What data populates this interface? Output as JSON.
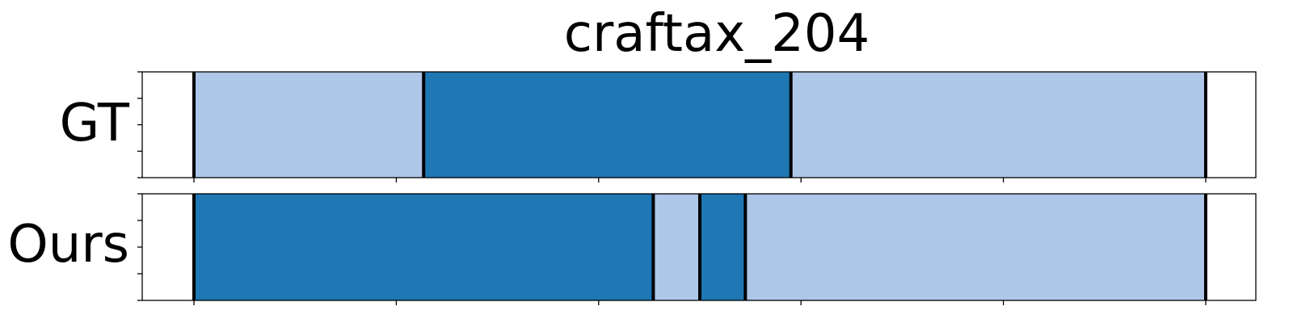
{
  "chart_data": {
    "type": "segmentation_bar",
    "title": "craftax_204",
    "xlim": [
      0,
      1000
    ],
    "xticks": [
      0,
      200,
      400,
      600,
      800,
      1000
    ],
    "yticks_per_row": 5,
    "colors": {
      "light": "#aec7e8",
      "dark": "#1f77b4",
      "boundary": "#000000"
    },
    "rows": [
      {
        "name": "GT",
        "segments": [
          {
            "start": 0,
            "end": 227,
            "class": "light"
          },
          {
            "start": 227,
            "end": 590,
            "class": "dark"
          },
          {
            "start": 590,
            "end": 1000,
            "class": "light"
          }
        ],
        "boundaries": [
          0,
          227,
          590,
          1000
        ]
      },
      {
        "name": "Ours",
        "segments": [
          {
            "start": 0,
            "end": 454,
            "class": "dark"
          },
          {
            "start": 454,
            "end": 500,
            "class": "light"
          },
          {
            "start": 500,
            "end": 545,
            "class": "dark"
          },
          {
            "start": 545,
            "end": 1000,
            "class": "light"
          }
        ],
        "boundaries": [
          0,
          454,
          500,
          545,
          1000
        ]
      }
    ]
  }
}
